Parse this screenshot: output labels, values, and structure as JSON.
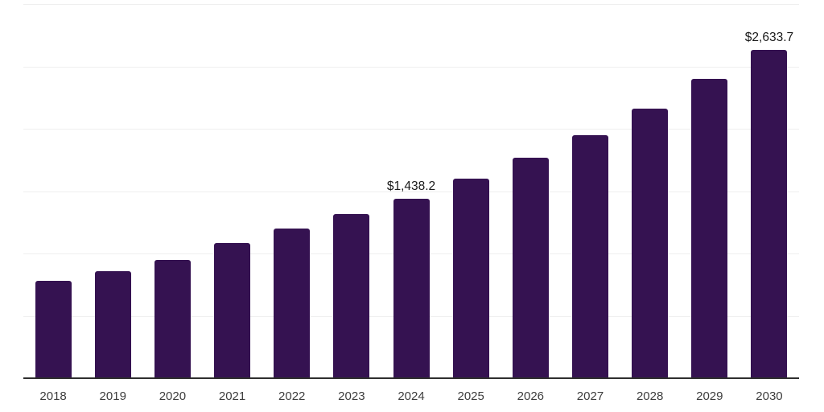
{
  "chart_data": {
    "type": "bar",
    "title": "",
    "xlabel": "",
    "ylabel": "",
    "categories": [
      "2018",
      "2019",
      "2020",
      "2021",
      "2022",
      "2023",
      "2024",
      "2025",
      "2026",
      "2027",
      "2028",
      "2029",
      "2030"
    ],
    "values": [
      779,
      858,
      951,
      1085,
      1200,
      1315,
      1438.2,
      1598,
      1768,
      1950,
      2161,
      2398,
      2633.7
    ],
    "value_labels": {
      "2024": "$1,438.2",
      "2030": "$2,633.7"
    },
    "ylim": [
      0,
      3000
    ],
    "gridline_interval": 500,
    "grid": true,
    "legend": false,
    "colors": {
      "bar": "#351251",
      "grid_line": "#efefef",
      "axis_line": "#2e2e2e",
      "value_label_text": "#1a1a1a",
      "tick_label_text": "#3d3d3d",
      "background": "#ffffff"
    }
  }
}
